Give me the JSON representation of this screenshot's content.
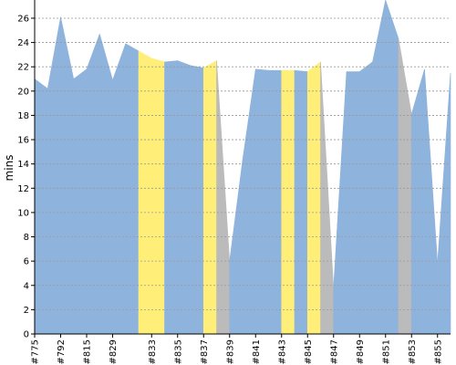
{
  "chart_data": {
    "type": "area",
    "title": "",
    "xlabel": "",
    "ylabel": "mins",
    "ylim": [
      0,
      27.5
    ],
    "y_ticks": [
      0,
      2,
      4,
      6,
      8,
      10,
      12,
      14,
      16,
      18,
      20,
      22,
      24,
      26
    ],
    "grid": "horizontal dashed",
    "colors": {
      "success": "#8EB3DC",
      "unstable": "#FFEE77",
      "other": "#BBBBBB",
      "grid": "#999999",
      "axis": "#000000"
    },
    "x_tick_labels": [
      "#775",
      "#792",
      "#815",
      "#829",
      "#833",
      "#835",
      "#837",
      "#839",
      "#841",
      "#843",
      "#845",
      "#847",
      "#849",
      "#851",
      "#853",
      "#855"
    ],
    "builds": [
      {
        "label": "#775",
        "y": 21.0,
        "status": "success"
      },
      {
        "label": "#781",
        "y": 20.2,
        "status": "success"
      },
      {
        "label": "#792",
        "y": 26.1,
        "status": "success"
      },
      {
        "label": "#803",
        "y": 21.0,
        "status": "success"
      },
      {
        "label": "#815",
        "y": 21.8,
        "status": "success"
      },
      {
        "label": "#820",
        "y": 24.7,
        "status": "success"
      },
      {
        "label": "#829",
        "y": 20.9,
        "status": "success"
      },
      {
        "label": "#831",
        "y": 23.9,
        "status": "success"
      },
      {
        "label": "#832",
        "y": 23.3,
        "status": "unstable"
      },
      {
        "label": "#833",
        "y": 22.7,
        "status": "unstable"
      },
      {
        "label": "#834",
        "y": 22.4,
        "status": "success"
      },
      {
        "label": "#835",
        "y": 22.5,
        "status": "success"
      },
      {
        "label": "#836",
        "y": 22.1,
        "status": "success"
      },
      {
        "label": "#837",
        "y": 21.9,
        "status": "unstable"
      },
      {
        "label": "#838",
        "y": 22.5,
        "status": "other"
      },
      {
        "label": "#839",
        "y": 6.0,
        "status": "success"
      },
      {
        "label": "#840",
        "y": 14.3,
        "status": "success"
      },
      {
        "label": "#841",
        "y": 21.8,
        "status": "success"
      },
      {
        "label": "#842",
        "y": 21.7,
        "status": "success"
      },
      {
        "label": "#843",
        "y": 21.7,
        "status": "unstable"
      },
      {
        "label": "#844",
        "y": 21.7,
        "status": "success"
      },
      {
        "label": "#845",
        "y": 21.6,
        "status": "unstable"
      },
      {
        "label": "#846",
        "y": 22.4,
        "status": "other"
      },
      {
        "label": "#847",
        "y": 3.8,
        "status": "success"
      },
      {
        "label": "#848",
        "y": 21.6,
        "status": "success"
      },
      {
        "label": "#849",
        "y": 21.6,
        "status": "success"
      },
      {
        "label": "#850",
        "y": 22.4,
        "status": "success"
      },
      {
        "label": "#851",
        "y": 29.5,
        "status": "success"
      },
      {
        "label": "#852",
        "y": 24.3,
        "status": "other"
      },
      {
        "label": "#853",
        "y": 18.1,
        "status": "success"
      },
      {
        "label": "#854",
        "y": 21.8,
        "status": "success"
      },
      {
        "label": "#855",
        "y": 5.8,
        "status": "success"
      },
      {
        "label": "#856",
        "y": 21.5,
        "status": "success"
      }
    ]
  }
}
